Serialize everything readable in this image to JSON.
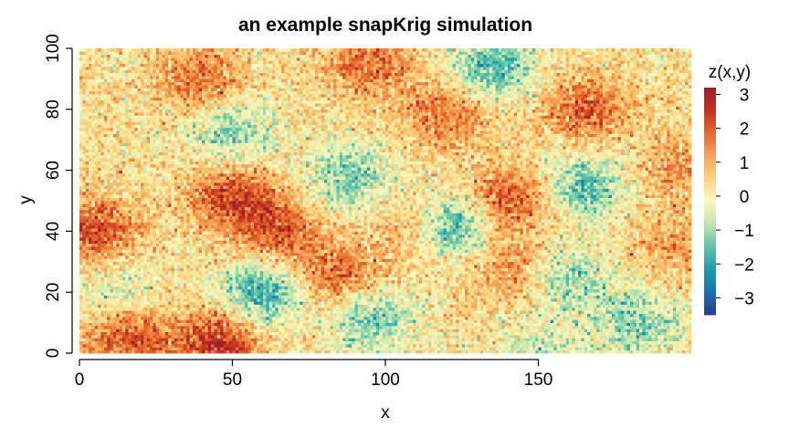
{
  "chart_data": {
    "type": "heatmap",
    "title": "an example snapKrig simulation",
    "xlabel": "x",
    "ylabel": "y",
    "xlim": [
      0,
      200
    ],
    "ylim": [
      0,
      100
    ],
    "x_ticks": [
      0,
      50,
      100,
      150
    ],
    "y_ticks": [
      0,
      20,
      40,
      60,
      80,
      100
    ],
    "x_tick_labels": [
      "0",
      "50",
      "100",
      "150"
    ],
    "y_tick_labels": [
      "0",
      "20",
      "40",
      "60",
      "80",
      "100"
    ],
    "grid": false,
    "legend": {
      "title": "z(x,y)",
      "placement": "right",
      "range": [
        -3.5,
        3.2
      ],
      "ticks": [
        3,
        2,
        1,
        0,
        -1,
        -2,
        -3
      ],
      "tick_labels": [
        "3",
        "2",
        "1",
        "0",
        "−1",
        "−2",
        "−3"
      ],
      "palette": [
        "#2a3b8f",
        "#1c6fb0",
        "#1a9eae",
        "#61c3a9",
        "#c1e6b0",
        "#fff8bd",
        "#fdd37c",
        "#f7a35a",
        "#e56a2c",
        "#c5321e",
        "#9c1c30"
      ]
    },
    "grid_resolution": [
      200,
      100
    ],
    "field_features": [
      {
        "x": 60,
        "y": 20,
        "z": -2.2
      },
      {
        "x": 123,
        "y": 41,
        "z": -2.3
      },
      {
        "x": 135,
        "y": 94,
        "z": -2.0
      },
      {
        "x": 165,
        "y": 55,
        "z": -1.9
      },
      {
        "x": 50,
        "y": 72,
        "z": -1.5
      },
      {
        "x": 88,
        "y": 58,
        "z": -1.6
      },
      {
        "x": 95,
        "y": 12,
        "z": -1.7
      },
      {
        "x": 182,
        "y": 10,
        "z": -1.6
      },
      {
        "x": 12,
        "y": 20,
        "z": -1.0
      },
      {
        "x": 160,
        "y": 25,
        "z": -1.3
      },
      {
        "x": 150,
        "y": 0,
        "z": -1.0
      },
      {
        "x": 50,
        "y": 52,
        "z": 2.0
      },
      {
        "x": 65,
        "y": 40,
        "z": 1.8
      },
      {
        "x": 5,
        "y": 40,
        "z": 2.0
      },
      {
        "x": 45,
        "y": 3,
        "z": 2.5
      },
      {
        "x": 15,
        "y": 5,
        "z": 2.0
      },
      {
        "x": 85,
        "y": 25,
        "z": 1.8
      },
      {
        "x": 140,
        "y": 50,
        "z": 2.0
      },
      {
        "x": 165,
        "y": 80,
        "z": 1.8
      },
      {
        "x": 120,
        "y": 78,
        "z": 1.5
      },
      {
        "x": 95,
        "y": 95,
        "z": 1.6
      },
      {
        "x": 40,
        "y": 90,
        "z": 1.5
      },
      {
        "x": 195,
        "y": 60,
        "z": 1.0
      },
      {
        "x": 140,
        "y": 28,
        "z": 1.2
      },
      {
        "x": 195,
        "y": 35,
        "z": 1.0
      },
      {
        "x": 110,
        "y": 40,
        "z": 1.0
      }
    ]
  }
}
